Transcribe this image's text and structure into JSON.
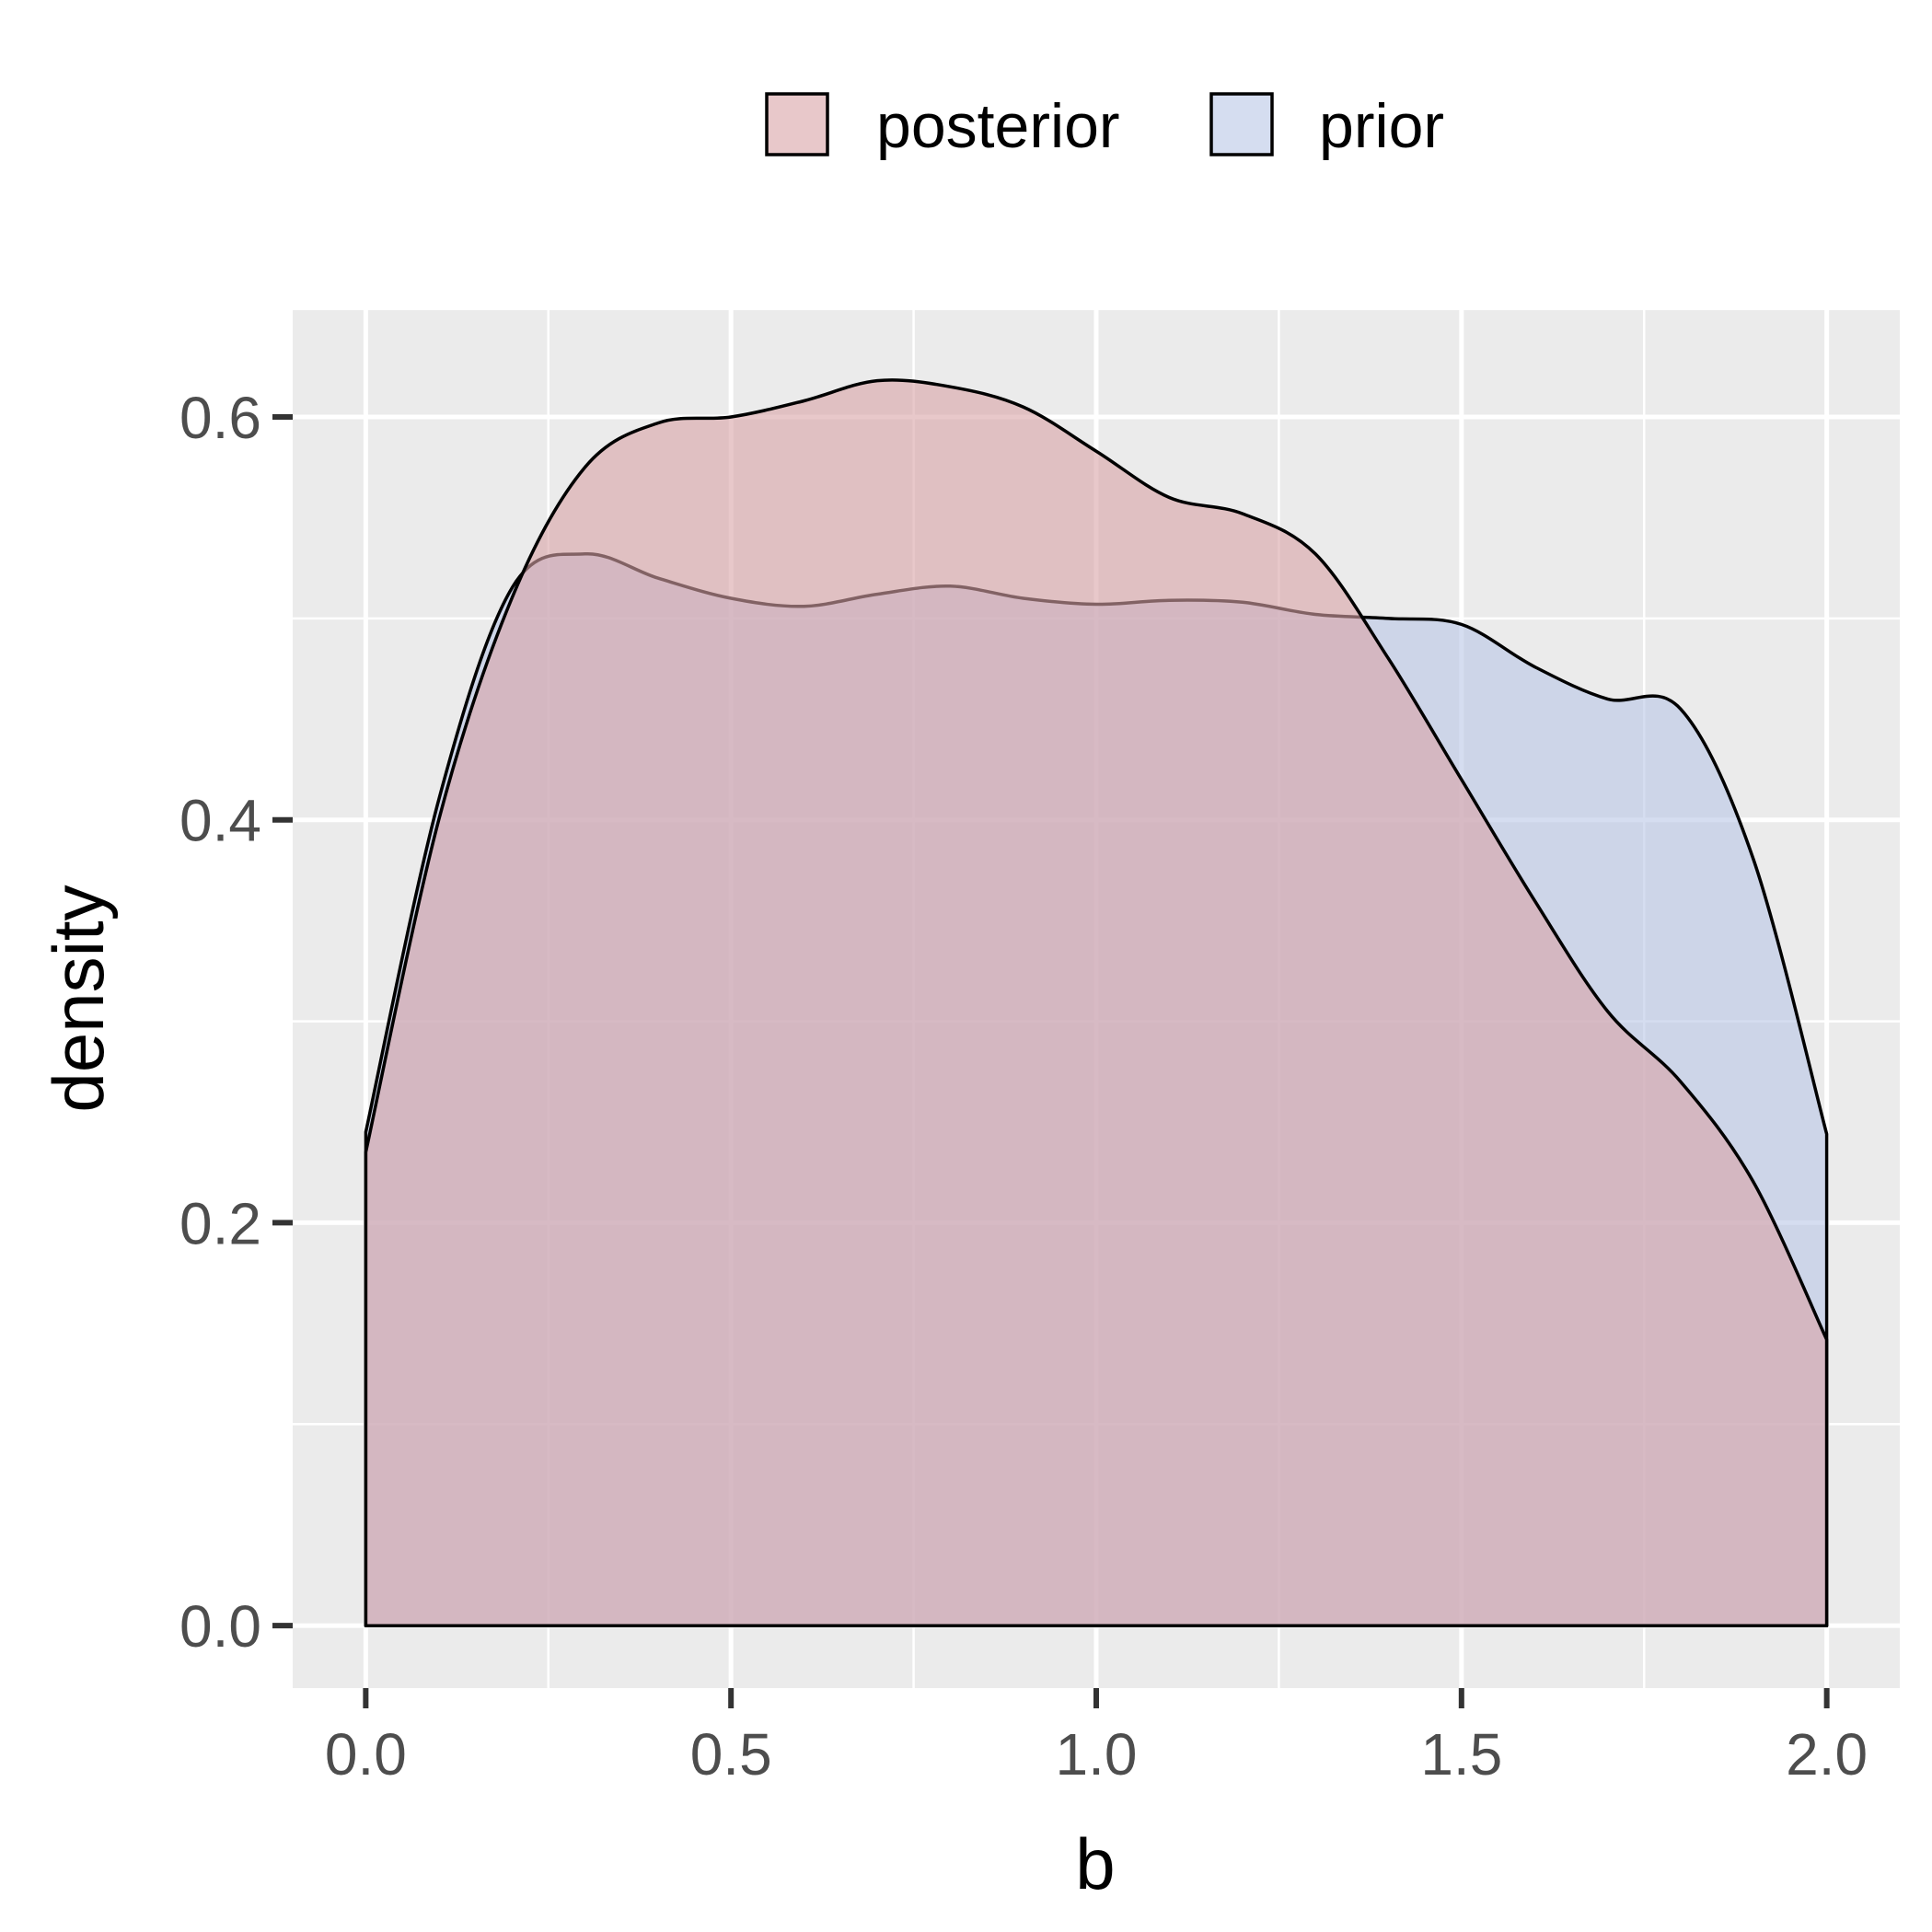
{
  "chart_data": {
    "type": "area",
    "xlabel": "b",
    "ylabel": "density",
    "xlim": [
      -0.1,
      2.1
    ],
    "ylim": [
      -0.031,
      0.653
    ],
    "x_ticks": [
      {
        "value": 0.0,
        "label": "0.0"
      },
      {
        "value": 0.5,
        "label": "0.5"
      },
      {
        "value": 1.0,
        "label": "1.0"
      },
      {
        "value": 1.5,
        "label": "1.5"
      },
      {
        "value": 2.0,
        "label": "2.0"
      }
    ],
    "y_ticks": [
      {
        "value": 0.0,
        "label": "0.0"
      },
      {
        "value": 0.2,
        "label": "0.2"
      },
      {
        "value": 0.4,
        "label": "0.4"
      },
      {
        "value": 0.6,
        "label": "0.6"
      }
    ],
    "grid": true,
    "legend_position": "top",
    "panel_color": "#ebebeb",
    "series": [
      {
        "name": "posterior",
        "fill": "#d9a3a6",
        "x": [
          0.0,
          0.1,
          0.2,
          0.3,
          0.4,
          0.5,
          0.6,
          0.7,
          0.8,
          0.9,
          1.0,
          1.1,
          1.2,
          1.3,
          1.4,
          1.5,
          1.6,
          1.7,
          1.8,
          1.9,
          2.0
        ],
        "y": [
          0.235,
          0.4,
          0.51,
          0.575,
          0.597,
          0.6,
          0.608,
          0.618,
          0.615,
          0.605,
          0.583,
          0.56,
          0.552,
          0.532,
          0.48,
          0.42,
          0.36,
          0.305,
          0.27,
          0.22,
          0.142
        ]
      },
      {
        "name": "prior",
        "fill": "#b9c7e6",
        "x": [
          0.0,
          0.1,
          0.2,
          0.3,
          0.4,
          0.5,
          0.6,
          0.7,
          0.8,
          0.9,
          1.0,
          1.1,
          1.2,
          1.3,
          1.4,
          1.5,
          1.6,
          1.7,
          1.8,
          1.9,
          2.0
        ],
        "y": [
          0.245,
          0.41,
          0.515,
          0.532,
          0.52,
          0.51,
          0.506,
          0.512,
          0.516,
          0.51,
          0.507,
          0.509,
          0.508,
          0.502,
          0.5,
          0.497,
          0.476,
          0.46,
          0.455,
          0.38,
          0.244
        ]
      }
    ]
  }
}
